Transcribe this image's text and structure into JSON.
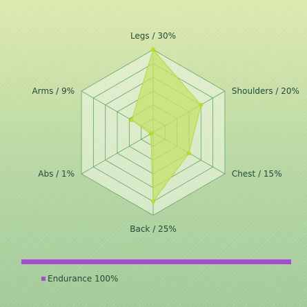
{
  "chart_data": {
    "type": "radar",
    "axes": [
      {
        "category": "Legs",
        "value": 30,
        "label": "Legs / 30%"
      },
      {
        "category": "Shoulders",
        "value": 20,
        "label": "Shoulders / 20%"
      },
      {
        "category": "Chest",
        "value": 15,
        "label": "Chest / 15%"
      },
      {
        "category": "Back",
        "value": 25,
        "label": "Back / 25%"
      },
      {
        "category": "Abs",
        "value": 1,
        "label": "Abs / 1%"
      },
      {
        "category": "Arms",
        "value": 9,
        "label": "Arms / 9%"
      }
    ],
    "rmax": 30,
    "rings": 6,
    "grid": true,
    "series": [
      {
        "name": "Endurance",
        "legend": "Endurance 100%",
        "values": [
          30,
          20,
          15,
          25,
          1,
          9
        ]
      }
    ],
    "legend_position": "bottom"
  },
  "colors": {
    "grid_stroke": "#5aab5a",
    "grid_fill": "#e4f0d8",
    "area_fill": "#c6e26a",
    "area_stroke": "#b3d93a",
    "point": "#b8dd20",
    "legend": "#a64bd3",
    "text": "#1f4a3a"
  }
}
